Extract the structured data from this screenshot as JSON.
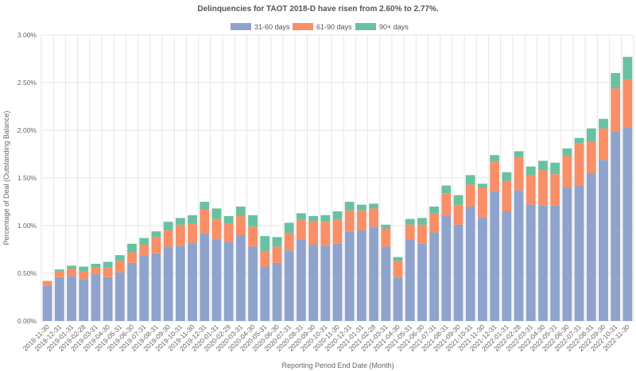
{
  "chart_data": {
    "type": "bar",
    "stacked": true,
    "title": "Delinquencies for TAOT 2018-D have risen from 2.60% to 2.77%.",
    "xlabel": "Reporting Period End Date (Month)",
    "ylabel": "Percentage of Deal (Outstanding Balance)",
    "ylim": [
      0,
      3.0
    ],
    "yticks": [
      "0.00%",
      "0.50%",
      "1.00%",
      "1.50%",
      "2.00%",
      "2.50%",
      "3.00%"
    ],
    "ytick_values": [
      0,
      0.5,
      1.0,
      1.5,
      2.0,
      2.5,
      3.0
    ],
    "grid": true,
    "legend_position": "top-center",
    "categories": [
      "2018-11-30",
      "2018-12-31",
      "2019-01-31",
      "2019-02-28",
      "2019-03-31",
      "2019-04-30",
      "2019-05-31",
      "2019-06-30",
      "2019-07-31",
      "2019-08-31",
      "2019-09-30",
      "2019-10-31",
      "2019-11-30",
      "2019-12-31",
      "2020-01-31",
      "2020-02-29",
      "2020-03-31",
      "2020-04-30",
      "2020-05-31",
      "2020-06-30",
      "2020-07-31",
      "2020-08-31",
      "2020-09-30",
      "2020-10-31",
      "2020-11-30",
      "2020-12-31",
      "2021-01-31",
      "2021-02-28",
      "2021-03-31",
      "2021-04-30",
      "2021-05-31",
      "2021-06-30",
      "2021-07-31",
      "2021-08-31",
      "2021-09-30",
      "2021-10-31",
      "2021-11-30",
      "2021-12-31",
      "2022-01-31",
      "2022-02-28",
      "2022-03-31",
      "2022-04-30",
      "2022-05-31",
      "2022-06-30",
      "2022-07-31",
      "2022-08-31",
      "2022-09-30",
      "2022-10-31",
      "2022-11-30"
    ],
    "series": [
      {
        "name": "31-60 days",
        "color": "#8fa3cc",
        "values": [
          0.37,
          0.46,
          0.47,
          0.44,
          0.49,
          0.46,
          0.51,
          0.61,
          0.69,
          0.71,
          0.78,
          0.79,
          0.82,
          0.92,
          0.86,
          0.83,
          0.9,
          0.78,
          0.57,
          0.61,
          0.74,
          0.85,
          0.8,
          0.79,
          0.81,
          0.94,
          0.95,
          0.99,
          0.78,
          0.46,
          0.85,
          0.81,
          0.93,
          1.1,
          1.01,
          1.2,
          1.09,
          1.36,
          1.15,
          1.37,
          1.22,
          1.21,
          1.21,
          1.4,
          1.42,
          1.55,
          1.69,
          1.99,
          2.03
        ]
      },
      {
        "name": "61-90 days",
        "color": "#f98f67",
        "values": [
          0.05,
          0.06,
          0.08,
          0.08,
          0.07,
          0.1,
          0.12,
          0.11,
          0.11,
          0.17,
          0.17,
          0.22,
          0.2,
          0.25,
          0.21,
          0.19,
          0.2,
          0.21,
          0.16,
          0.17,
          0.18,
          0.21,
          0.25,
          0.25,
          0.25,
          0.22,
          0.21,
          0.19,
          0.19,
          0.17,
          0.16,
          0.2,
          0.2,
          0.24,
          0.21,
          0.23,
          0.31,
          0.31,
          0.32,
          0.35,
          0.31,
          0.37,
          0.33,
          0.33,
          0.44,
          0.33,
          0.33,
          0.45,
          0.5
        ]
      },
      {
        "name": "90+ days",
        "color": "#69c1a0",
        "values": [
          0.0,
          0.02,
          0.03,
          0.05,
          0.04,
          0.06,
          0.06,
          0.09,
          0.07,
          0.06,
          0.09,
          0.07,
          0.09,
          0.08,
          0.11,
          0.08,
          0.1,
          0.12,
          0.16,
          0.1,
          0.11,
          0.07,
          0.05,
          0.07,
          0.09,
          0.09,
          0.06,
          0.05,
          0.04,
          0.04,
          0.06,
          0.07,
          0.07,
          0.08,
          0.1,
          0.1,
          0.04,
          0.07,
          0.09,
          0.06,
          0.09,
          0.1,
          0.12,
          0.08,
          0.06,
          0.14,
          0.1,
          0.16,
          0.24
        ]
      }
    ]
  }
}
